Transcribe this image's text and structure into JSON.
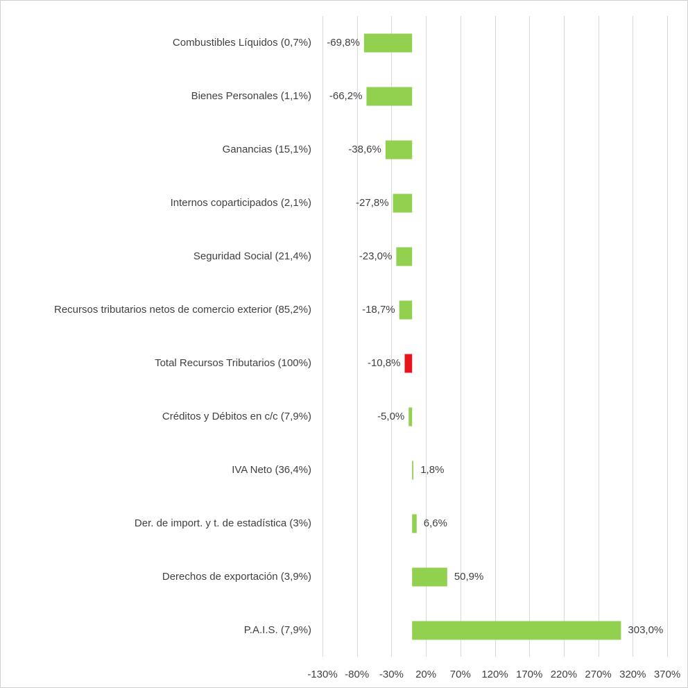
{
  "chart_data": {
    "type": "bar",
    "orientation": "horizontal",
    "categories": [
      "Combustibles Líquidos (0,7%)",
      "Bienes Personales (1,1%)",
      "Ganancias (15,1%)",
      "Internos coparticipados (2,1%)",
      "Seguridad Social (21,4%)",
      "Recursos tributarios netos de comercio exterior (85,2%)",
      "Total Recursos Tributarios (100%)",
      "Créditos y Débitos en c/c (7,9%)",
      "IVA Neto (36,4%)",
      "Der. de import. y t. de estadística (3%)",
      "Derechos de exportación (3,9%)",
      "P.A.I.S. (7,9%)"
    ],
    "values": [
      -69.8,
      -66.2,
      -38.6,
      -27.8,
      -23.0,
      -18.7,
      -10.8,
      -5.0,
      1.8,
      6.6,
      50.9,
      303.0
    ],
    "value_labels": [
      "-69,8%",
      "-66,2%",
      "-38,6%",
      "-27,8%",
      "-23,0%",
      "-18,7%",
      "-10,8%",
      "-5,0%",
      "1,8%",
      "6,6%",
      "50,9%",
      "303,0%"
    ],
    "highlight_index": 6,
    "colors": {
      "bar": "#92d050",
      "highlight": "#e8141b"
    },
    "xlim": [
      -130,
      370
    ],
    "xticks": [
      -130,
      -80,
      -30,
      20,
      70,
      120,
      170,
      220,
      270,
      320,
      370
    ],
    "xtick_labels": [
      "-130%",
      "-80%",
      "-30%",
      "20%",
      "70%",
      "120%",
      "170%",
      "220%",
      "270%",
      "320%",
      "370%"
    ],
    "grid": "vertical",
    "title": "",
    "xlabel": "",
    "ylabel": ""
  }
}
